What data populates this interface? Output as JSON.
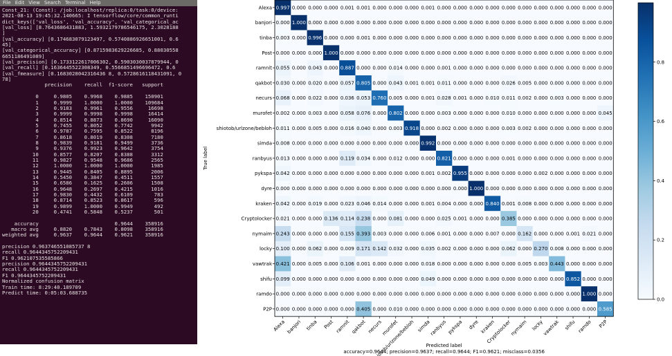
{
  "terminal": {
    "menu": [
      "File",
      "Edit",
      "View",
      "Search",
      "Terminal",
      "Help"
    ],
    "lines": [
      "Const_21: (Const): /job:localhost/replica:0/task:0/device:",
      "2021-08-13 19:45:32.140665: I tensorflow/core/common_runti",
      "dict_keys(['val_loss', 'val_accuracy', 'val_categorical_ac",
      "[val_loss] [8.7643686431883, 1.5932179786546175, 2.3028188",
      "]",
      "[val_accuracy] [0.174683079123497, 0.5740886926651001, 0.6",
      "45]",
      "[val_categorical_accuracy] [0.8715983629226685, 0.88030558",
      "6651186491089]",
      "[val_precision] [0.1733122617006302, 0.5903030037879944, 0",
      "[val_recall] [0.1636445522308349, 0.5566851496696472, 0.6",
      "[val_fmeasure] [0.1683028042316436 8, 0.5728616118431091, 0",
      "78]",
      "              precision    recall  f1-score   support",
      "",
      "           0     0.9805    0.9968    0.9885    150901",
      "           1     0.9999    1.0000    1.0000    109684",
      "           2     0.9183    0.9961    0.9556     16698",
      "           3     0.9999    0.9998    0.9998     16414",
      "           4     0.8514    0.8873    0.8690     16090",
      "           5     0.7455    0.8052    0.7742      9942",
      "           6     0.9787    0.7595    0.8522      8196",
      "           7     0.8618    0.8019    0.8308      7180",
      "           8     0.9839    0.9181    0.9499      3736",
      "           9     0.9376    0.9923    0.9642      3754",
      "          10     0.8577    0.8207    0.8388      3312",
      "          11     0.9827    0.9548    0.9686      2565",
      "          12     1.0000    1.0000    1.0000      1985",
      "          13     0.9445    0.8405    0.8895      2006",
      "          14     0.5450    0.3847    0.4511      1557",
      "          15     0.6586    0.1625    0.2606      1508",
      "          16     0.9648    0.2697    0.4215      1016",
      "          17     0.9830    0.4432    0.6109       783",
      "          18     0.8714    0.8523    0.8617       596",
      "          19     0.9899    1.0000    0.9949       492",
      "          20     0.4741    0.5848    0.5237       501",
      "",
      "    accuracy                         0.9644    358916",
      "   macro avg     0.8820    0.7843    0.8098    358916",
      "weighted avg     0.9637    0.9644    0.9621    358916",
      "",
      "precision 0.963746551085737 8",
      "recall 0.9644345752209431",
      "F1 0.962107535585866",
      "precision 0.9644345752209431",
      "recall 0.9644345752209431",
      "F1 0.9644345752209431",
      "Normalized confusion matrix",
      "Train time: 8:29:40.189709",
      "Predict time: 0:05:03.688735"
    ]
  },
  "chart_data": {
    "type": "heatmap",
    "title": "",
    "ylabel": "True label",
    "xlabel": "Predicted label",
    "summary": "accuracy=0.9644; precision=0.9637; recall=0.9644; F1=0.9621; misclass=0.0356",
    "labels": [
      "Alexa",
      "banjori",
      "tinba",
      "Post",
      "ramnit",
      "qakbot",
      "necurs",
      "murofet",
      "shiotob/urlzone/bebloh",
      "simda",
      "ranbyus",
      "pykspa",
      "dyre",
      "kraken",
      "Cryptolocker",
      "nymaim",
      "locky",
      "vawtrak",
      "shifu",
      "ramdo",
      "P2P"
    ],
    "matrix": [
      [
        0.997,
        0,
        0,
        0,
        0.001,
        0.001,
        0,
        0,
        0,
        0.001,
        0,
        0,
        0,
        0,
        0,
        0,
        0,
        0,
        0,
        0,
        0
      ],
      [
        0,
        1.0,
        0,
        0,
        0,
        0,
        0,
        0,
        0,
        0,
        0,
        0,
        0,
        0,
        0,
        0,
        0,
        0,
        0,
        0,
        0
      ],
      [
        0.003,
        0,
        0.996,
        0,
        0,
        0.001,
        0,
        0,
        0,
        0,
        0,
        0,
        0,
        0,
        0,
        0,
        0,
        0,
        0,
        0,
        0
      ],
      [
        0,
        0,
        0,
        1.0,
        0,
        0,
        0,
        0,
        0,
        0,
        0,
        0,
        0,
        0,
        0,
        0,
        0,
        0,
        0,
        0,
        0
      ],
      [
        0.055,
        0,
        0.043,
        0,
        0.887,
        0,
        0,
        0.014,
        0,
        0,
        0.001,
        0,
        0,
        0,
        0,
        0,
        0,
        0,
        0,
        0,
        0
      ],
      [
        0.03,
        0,
        0.02,
        0,
        0.057,
        0.805,
        0,
        0.043,
        0.001,
        0.001,
        0.011,
        0,
        0,
        0,
        0.026,
        0.005,
        0,
        0,
        0,
        0,
        0
      ],
      [
        0.068,
        0,
        0.022,
        0,
        0.036,
        0.053,
        0.76,
        0.005,
        0,
        0.001,
        0.028,
        0.001,
        0,
        0.01,
        0.011,
        0.002,
        0,
        0.003,
        0,
        0,
        0
      ],
      [
        0.002,
        0,
        0.003,
        0,
        0.058,
        0.076,
        0,
        0.802,
        0,
        0,
        0.003,
        0,
        0,
        0,
        0.01,
        0,
        0,
        0,
        0,
        0,
        0.045
      ],
      [
        0.011,
        0,
        0.005,
        0,
        0.016,
        0.04,
        0,
        0.003,
        0.918,
        0,
        0.002,
        0,
        0,
        0,
        0.003,
        0.002,
        0,
        0,
        0,
        0,
        0
      ],
      [
        0.008,
        0,
        0,
        0,
        0,
        0,
        0,
        0,
        0,
        0.992,
        0,
        0,
        0,
        0,
        0,
        0,
        0,
        0,
        0,
        0,
        0
      ],
      [
        0.013,
        0,
        0,
        0,
        0.119,
        0.034,
        0,
        0.012,
        0,
        0,
        0.821,
        0,
        0,
        0,
        0.001,
        0,
        0,
        0,
        0,
        0,
        0
      ],
      [
        0.042,
        0,
        0,
        0,
        0,
        0,
        0,
        0,
        0,
        0.001,
        0.002,
        0.955,
        0,
        0,
        0,
        0,
        0.002,
        0,
        0,
        0,
        0
      ],
      [
        0,
        0,
        0,
        0,
        0,
        0,
        0,
        0,
        0,
        0,
        0,
        0,
        1.0,
        0,
        0,
        0,
        0,
        0,
        0,
        0,
        0
      ],
      [
        0.042,
        0,
        0.019,
        0,
        0.023,
        0.046,
        0.014,
        0,
        0,
        0.001,
        0.004,
        0,
        0,
        0.84,
        0.001,
        0.008,
        0,
        0,
        0,
        0,
        0
      ],
      [
        0.021,
        0,
        0,
        0.136,
        0.114,
        0.238,
        0,
        0.081,
        0,
        0,
        0.025,
        0.001,
        0,
        0,
        0.385,
        0,
        0,
        0,
        0,
        0,
        0
      ],
      [
        0.243,
        0,
        0,
        0,
        0.155,
        0.393,
        0.003,
        0,
        0,
        0.006,
        0.001,
        0,
        0,
        0.007,
        0,
        0.162,
        0,
        0,
        0.001,
        0.021,
        0
      ],
      [
        0.1,
        0,
        0.062,
        0,
        0.009,
        0.171,
        0.142,
        0.032,
        0,
        0.035,
        0.002,
        0,
        0,
        0,
        0.062,
        0,
        0.27,
        0.008,
        0,
        0,
        0
      ],
      [
        0.421,
        0,
        0.005,
        0,
        0.106,
        0.001,
        0,
        0,
        0,
        0.018,
        0,
        0,
        0,
        0,
        0,
        0.005,
        0.003,
        0.443,
        0,
        0,
        0
      ],
      [
        0.099,
        0,
        0,
        0,
        0,
        0,
        0,
        0,
        0,
        0.049,
        0,
        0,
        0,
        0,
        0,
        0,
        0,
        0,
        0.852,
        0,
        0
      ],
      [
        0,
        0,
        0,
        0,
        0,
        0,
        0,
        0,
        0,
        0,
        0,
        0,
        0,
        0,
        0,
        0,
        0,
        0,
        0,
        1.0,
        0
      ],
      [
        0,
        0,
        0,
        0,
        0,
        0.405,
        0,
        0.01,
        0,
        0,
        0,
        0,
        0,
        0,
        0,
        0,
        0,
        0,
        0,
        0,
        0.585
      ]
    ],
    "vmin": 0.0,
    "vmax": 1.0,
    "colorbar_ticks": [
      "0.0",
      "0.2",
      "0.4",
      "0.6",
      "0.8"
    ],
    "colorbar_tick_values": [
      0,
      0.2,
      0.4,
      0.6,
      0.8
    ]
  }
}
